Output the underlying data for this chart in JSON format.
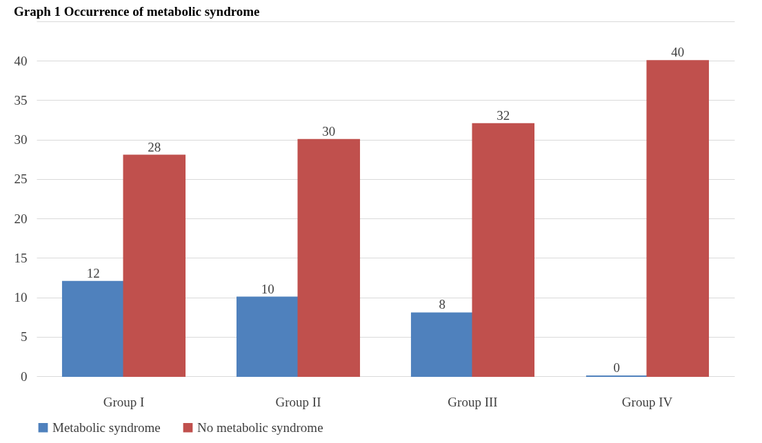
{
  "chart_data": {
    "type": "bar",
    "title": "Graph 1 Occurrence of metabolic syndrome",
    "categories": [
      "Group I",
      "Group II",
      "Group III",
      "Group IV"
    ],
    "series": [
      {
        "name": "Metabolic syndrome",
        "color": "#4f81bd",
        "values": [
          12,
          10,
          8,
          0
        ]
      },
      {
        "name": "No metabolic syndrome",
        "color": "#c0504d",
        "values": [
          28,
          30,
          32,
          40
        ]
      }
    ],
    "ylim": [
      0,
      45
    ],
    "yticks": [
      0,
      5,
      10,
      15,
      20,
      25,
      30,
      35,
      40,
      {
        "value": 45,
        "label": null
      }
    ],
    "grid": "y",
    "legend": "bottom",
    "data_labels": true
  }
}
